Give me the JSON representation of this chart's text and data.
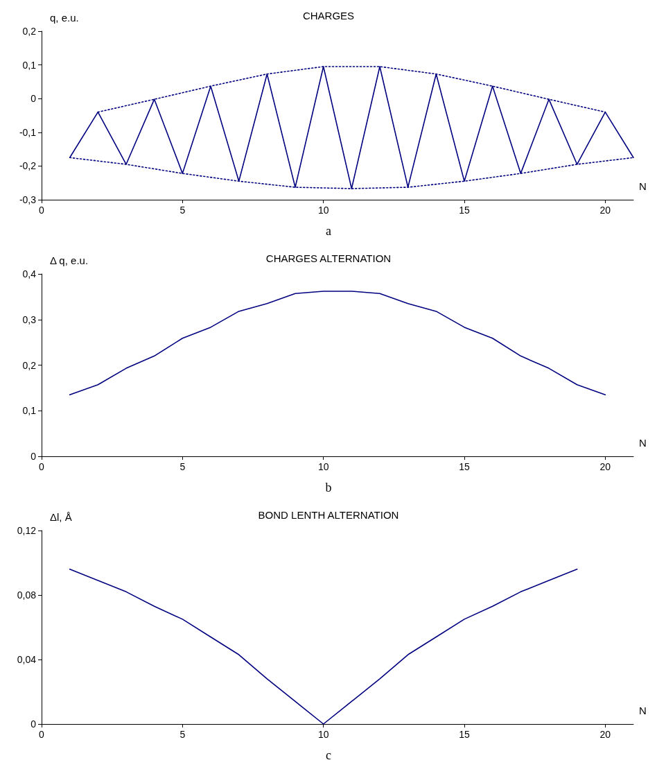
{
  "chart_data": [
    {
      "type": "line",
      "title": "CHARGES",
      "xlabel": "N",
      "ylabel": "q, e.u.",
      "annotations": [
        "a"
      ],
      "xlim": [
        0,
        21
      ],
      "xticks": [
        0,
        5,
        10,
        15,
        20
      ],
      "ylim": [
        -0.3,
        0.2
      ],
      "yticks": [
        {
          "value": -0.3,
          "label": "-0,3"
        },
        {
          "value": -0.2,
          "label": "-0,2"
        },
        {
          "value": -0.1,
          "label": "-0,1"
        },
        {
          "value": 0,
          "label": "0"
        },
        {
          "value": 0.1,
          "label": "0,1"
        },
        {
          "value": 0.2,
          "label": "0,2"
        }
      ],
      "grid": false,
      "marker": "none",
      "series": [
        {
          "color": "#000080",
          "line_style": "solid",
          "x": [
            1,
            2,
            3,
            4,
            5,
            6,
            7,
            8,
            9,
            10,
            11,
            12,
            13,
            14,
            15,
            16,
            17,
            18,
            19,
            20,
            21
          ],
          "values": [
            -0.175,
            -0.04,
            -0.195,
            -0.002,
            -0.222,
            0.037,
            -0.245,
            0.073,
            -0.263,
            0.095,
            -0.267,
            0.095,
            -0.263,
            0.073,
            -0.245,
            0.037,
            -0.222,
            -0.002,
            -0.195,
            -0.04,
            -0.175
          ]
        },
        {
          "color": "#000080",
          "line_style": "dotted",
          "x": [
            2,
            4,
            6,
            8,
            10,
            12,
            14,
            16,
            18,
            20
          ],
          "values": [
            -0.04,
            -0.002,
            0.037,
            0.073,
            0.095,
            0.095,
            0.073,
            0.037,
            -0.002,
            -0.04
          ]
        },
        {
          "color": "#000080",
          "line_style": "dotted",
          "x": [
            1,
            3,
            5,
            7,
            9,
            11,
            13,
            15,
            17,
            19,
            21
          ],
          "values": [
            -0.175,
            -0.195,
            -0.222,
            -0.245,
            -0.263,
            -0.267,
            -0.263,
            -0.245,
            -0.222,
            -0.195,
            -0.175
          ]
        }
      ]
    },
    {
      "type": "line",
      "title": "CHARGES ALTERNATION",
      "xlabel": "N",
      "ylabel": "Δ q, e.u.",
      "annotations": [
        "b"
      ],
      "xlim": [
        0,
        21
      ],
      "xticks": [
        0,
        5,
        10,
        15,
        20
      ],
      "ylim": [
        0,
        0.4
      ],
      "yticks": [
        {
          "value": 0,
          "label": "0"
        },
        {
          "value": 0.1,
          "label": "0,1"
        },
        {
          "value": 0.2,
          "label": "0,2"
        },
        {
          "value": 0.3,
          "label": "0,3"
        },
        {
          "value": 0.4,
          "label": "0,4"
        }
      ],
      "grid": false,
      "marker": "none",
      "series": [
        {
          "color": "#000080",
          "line_style": "solid",
          "x": [
            1,
            2,
            3,
            4,
            5,
            6,
            7,
            8,
            9,
            10,
            11,
            12,
            13,
            14,
            15,
            16,
            17,
            18,
            19,
            20
          ],
          "values": [
            0.135,
            0.157,
            0.193,
            0.22,
            0.259,
            0.283,
            0.318,
            0.335,
            0.357,
            0.362,
            0.362,
            0.357,
            0.335,
            0.318,
            0.283,
            0.259,
            0.22,
            0.193,
            0.157,
            0.135
          ]
        }
      ]
    },
    {
      "type": "line",
      "title": "BOND LENTH ALTERNATION",
      "xlabel": "N",
      "ylabel": "Δl, Å",
      "annotations": [
        "c"
      ],
      "xlim": [
        0,
        21
      ],
      "xticks": [
        0,
        5,
        10,
        15,
        20
      ],
      "ylim": [
        0,
        0.12
      ],
      "yticks": [
        {
          "value": 0,
          "label": "0"
        },
        {
          "value": 0.04,
          "label": "0,04"
        },
        {
          "value": 0.08,
          "label": "0,08"
        },
        {
          "value": 0.12,
          "label": "0,12"
        }
      ],
      "grid": false,
      "marker": "none",
      "series": [
        {
          "color": "#000080",
          "line_style": "solid",
          "x": [
            1,
            2,
            3,
            4,
            5,
            6,
            7,
            8,
            9,
            10,
            11,
            12,
            13,
            14,
            15,
            16,
            17,
            18,
            19
          ],
          "values": [
            0.096,
            0.089,
            0.082,
            0.073,
            0.065,
            0.054,
            0.043,
            0.028,
            0.014,
            0,
            0.014,
            0.028,
            0.043,
            0.054,
            0.065,
            0.073,
            0.082,
            0.089,
            0.096
          ]
        }
      ]
    }
  ]
}
